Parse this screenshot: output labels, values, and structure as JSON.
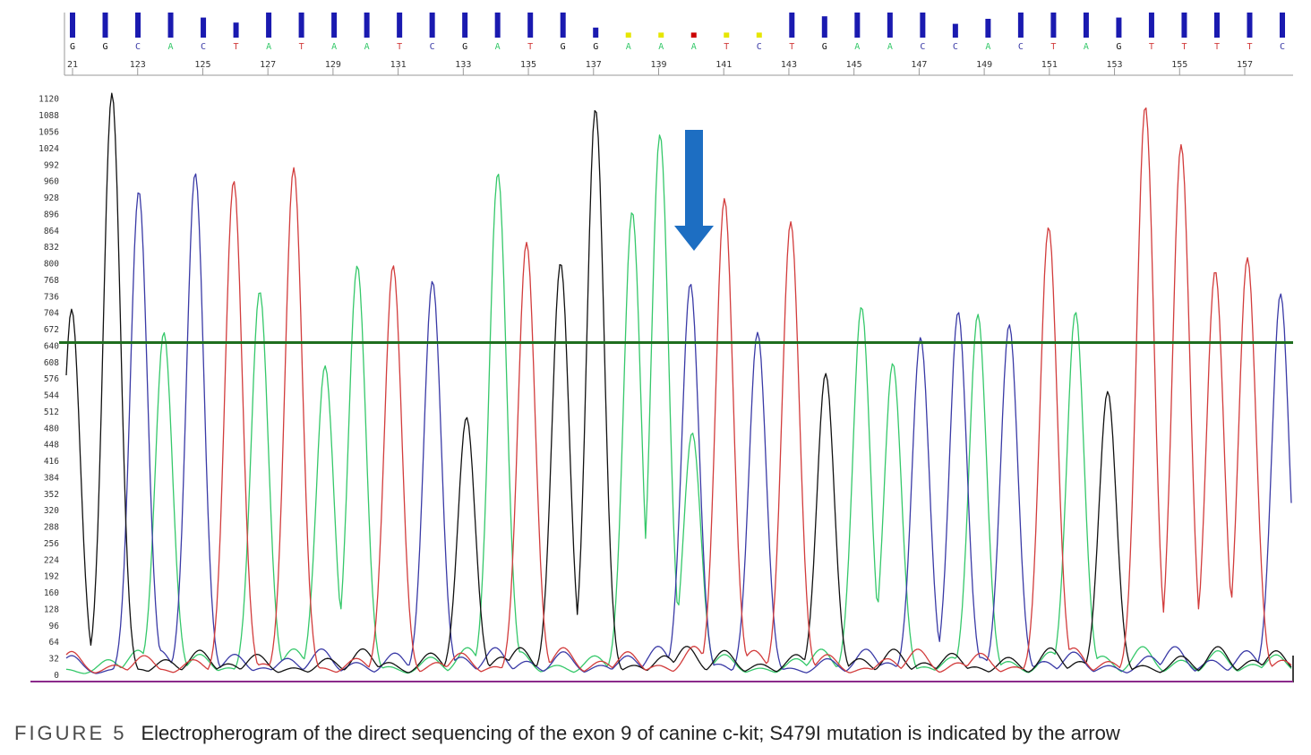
{
  "caption": {
    "label": "FIGURE 5",
    "text": "Electropherogram of the direct sequencing of the exon 9 of canine c-kit; S479I mutation is indicated by the arrow"
  },
  "colors": {
    "A": "#35c86a",
    "C": "#3a3aa6",
    "G": "#111111",
    "T": "#d23c3c",
    "quality_bar": "#1a1ab0",
    "threshold_line": "#1f6e1f",
    "baseline": "#8b2a8b",
    "arrow": "#1d6ec2",
    "low_quality_yellow": "#e6e600",
    "low_quality_red": "#cc0000"
  },
  "chart_data": {
    "type": "line",
    "title": "",
    "xlabel": "",
    "ylabel": "",
    "x_ticks": [
      "21",
      "123",
      "125",
      "127",
      "129",
      "131",
      "133",
      "135",
      "137",
      "139",
      "141",
      "143",
      "145",
      "147",
      "149",
      "151",
      "153",
      "155",
      "157"
    ],
    "y_ticks": [
      0,
      32,
      64,
      96,
      128,
      160,
      192,
      224,
      256,
      288,
      320,
      352,
      384,
      416,
      448,
      480,
      512,
      544,
      576,
      608,
      640,
      672,
      704,
      736,
      768,
      800,
      832,
      864,
      896,
      928,
      960,
      992,
      1024,
      1056,
      1088,
      1120
    ],
    "ylim": [
      0,
      1130
    ],
    "threshold": 645,
    "grid": false,
    "base_calls": [
      "G",
      "G",
      "C",
      "A",
      "C",
      "T",
      "A",
      "T",
      "A",
      "A",
      "T",
      "C",
      "G",
      "A",
      "T",
      "G",
      "G",
      "A",
      "A",
      "A",
      "T",
      "C",
      "T",
      "G",
      "A",
      "A",
      "C",
      "C",
      "A",
      "C",
      "T",
      "A",
      "G",
      "T",
      "T",
      "T",
      "T",
      "C"
    ],
    "quality": [
      1.0,
      1.0,
      1.0,
      1.0,
      0.8,
      0.6,
      1.0,
      1.0,
      1.0,
      1.0,
      1.0,
      1.0,
      1.0,
      1.0,
      1.0,
      1.0,
      0.4,
      0.2,
      0.2,
      0.2,
      0.2,
      0.2,
      1.0,
      0.85,
      1.0,
      1.0,
      1.0,
      0.55,
      0.75,
      1.0,
      1.0,
      1.0,
      0.8,
      1.0,
      1.0,
      1.0,
      1.0,
      1.0
    ],
    "peaks": [
      {
        "base": "G",
        "x": 80,
        "h": 710
      },
      {
        "base": "G",
        "x": 125,
        "h": 1130
      },
      {
        "base": "C",
        "x": 155,
        "h": 940
      },
      {
        "base": "A",
        "x": 183,
        "h": 665
      },
      {
        "base": "C",
        "x": 218,
        "h": 975
      },
      {
        "base": "T",
        "x": 261,
        "h": 960
      },
      {
        "base": "A",
        "x": 290,
        "h": 745
      },
      {
        "base": "T",
        "x": 328,
        "h": 985
      },
      {
        "base": "A",
        "x": 363,
        "h": 600
      },
      {
        "base": "A",
        "x": 399,
        "h": 795
      },
      {
        "base": "T",
        "x": 439,
        "h": 795
      },
      {
        "base": "C",
        "x": 483,
        "h": 765
      },
      {
        "base": "G",
        "x": 521,
        "h": 500
      },
      {
        "base": "A",
        "x": 556,
        "h": 975
      },
      {
        "base": "T",
        "x": 588,
        "h": 840
      },
      {
        "base": "G",
        "x": 626,
        "h": 800
      },
      {
        "base": "G",
        "x": 665,
        "h": 1100
      },
      {
        "base": "A",
        "x": 706,
        "h": 900
      },
      {
        "base": "A",
        "x": 737,
        "h": 1050
      },
      {
        "base": "A",
        "x": 773,
        "h": 470
      },
      {
        "base": "C",
        "x": 771,
        "h": 760
      },
      {
        "base": "T",
        "x": 809,
        "h": 925
      },
      {
        "base": "C",
        "x": 846,
        "h": 665
      },
      {
        "base": "T",
        "x": 883,
        "h": 880
      },
      {
        "base": "G",
        "x": 922,
        "h": 585
      },
      {
        "base": "A",
        "x": 962,
        "h": 715
      },
      {
        "base": "A",
        "x": 997,
        "h": 605
      },
      {
        "base": "C",
        "x": 1028,
        "h": 655
      },
      {
        "base": "C",
        "x": 1070,
        "h": 705
      },
      {
        "base": "A",
        "x": 1092,
        "h": 700
      },
      {
        "base": "C",
        "x": 1127,
        "h": 680
      },
      {
        "base": "T",
        "x": 1171,
        "h": 870
      },
      {
        "base": "A",
        "x": 1201,
        "h": 705
      },
      {
        "base": "G",
        "x": 1237,
        "h": 550
      },
      {
        "base": "T",
        "x": 1279,
        "h": 1105
      },
      {
        "base": "T",
        "x": 1319,
        "h": 1030
      },
      {
        "base": "T",
        "x": 1357,
        "h": 785
      },
      {
        "base": "T",
        "x": 1393,
        "h": 810
      },
      {
        "base": "C",
        "x": 1430,
        "h": 740
      }
    ]
  }
}
